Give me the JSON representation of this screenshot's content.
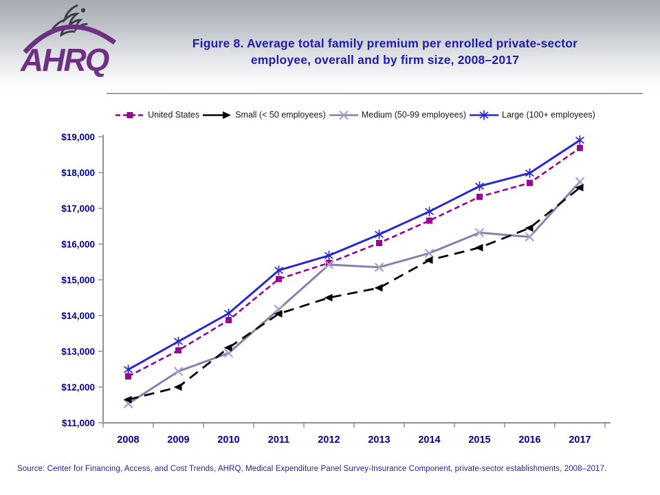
{
  "header": {
    "logo_text": "AHRQ",
    "title_line1": "Figure 8. Average total family premium per enrolled private-sector",
    "title_line2": "employee, overall and by firm size, 2008–2017"
  },
  "chart_data": {
    "type": "line",
    "title": "Figure 8. Average total family premium per enrolled private-sector employee, overall and by firm size, 2008–2017",
    "x": [
      "2008",
      "2009",
      "2010",
      "2011",
      "2012",
      "2013",
      "2014",
      "2015",
      "2016",
      "2017"
    ],
    "series": [
      {
        "name": "United States",
        "values": [
          12298,
          13027,
          13871,
          15022,
          15473,
          16029,
          16655,
          17322,
          17710,
          18687
        ],
        "color": "#990099",
        "line_style": "dashed",
        "dash": "8 4.5",
        "width": 2.6,
        "marker": "square",
        "marker_color": "#990099"
      },
      {
        "name": "Small (< 50 employees)",
        "values": [
          11650,
          12000,
          13100,
          14050,
          14500,
          14775,
          15550,
          15900,
          16450,
          17580
        ],
        "color": "#000000",
        "line_style": "long-dash",
        "dash": "15 9",
        "width": 2.8,
        "marker": "triangle-left",
        "marker_color": "#000000"
      },
      {
        "name": "Medium (50-99 employees)",
        "values": [
          11535,
          12440,
          12950,
          14175,
          15425,
          15350,
          15745,
          16320,
          16200,
          17745
        ],
        "color": "#8b7cab",
        "line_style": "solid",
        "dash": "",
        "width": 3,
        "marker": "x-cross",
        "marker_color": "#ab9ec7"
      },
      {
        "name": "Large (100+ employees)",
        "values": [
          12490,
          13275,
          14060,
          15265,
          15680,
          16270,
          16910,
          17620,
          17985,
          18905
        ],
        "color": "#2727ce",
        "line_style": "solid",
        "dash": "",
        "width": 3,
        "marker": "asterisk",
        "marker_color": "#2727ce"
      }
    ],
    "xlabel": "",
    "ylabel": "",
    "ylim": [
      11000,
      19000
    ],
    "ytick_step": 1000,
    "y_tick_labels": [
      "$11,000",
      "$12,000",
      "$13,000",
      "$14,000",
      "$15,000",
      "$16,000",
      "$17,000",
      "$18,000",
      "$19,000"
    ],
    "grid": false,
    "legend_position": "top"
  },
  "colors": {
    "title_text": "#1e1ea8",
    "axis_text": "#00009b",
    "axis_line": "#8f8f93",
    "logo_purple": "#6d3181",
    "eagle_gray": "#3a3f47",
    "source_text": "#20209a"
  },
  "footer": {
    "source": "Source: Center for Financing, Access, and Cost Trends, AHRQ, Medical Expenditure Panel Survey-Insurance Component, private-sector establishments, 2008–2017."
  }
}
